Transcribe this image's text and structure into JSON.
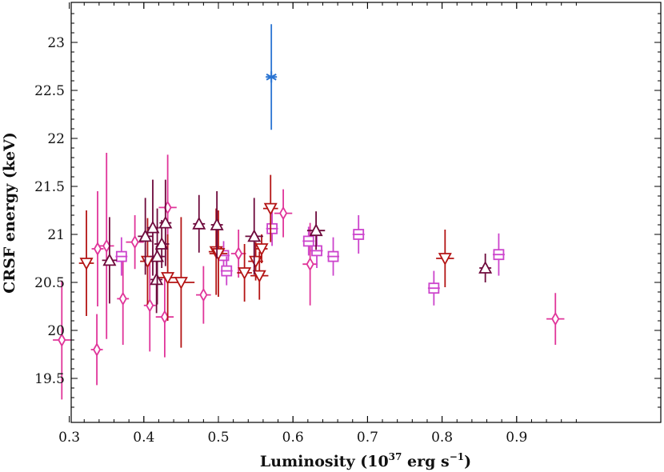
{
  "chart_data": {
    "type": "scatter",
    "title": "",
    "xlabel_main": "Luminosity (10",
    "xlabel_exp": "37",
    "xlabel_rest": " erg s",
    "xlabel_exp2": "−1",
    "xlabel_close": ")",
    "ylabel": "CRSF energy (keV)",
    "xlim": [
      0.25,
      1.0
    ],
    "ylim": [
      19.1,
      23.4
    ],
    "xticks": [
      0.3,
      0.4,
      0.5,
      0.6,
      0.7,
      0.8,
      0.9
    ],
    "xtick_labels": [
      "0.3",
      "0.4",
      "0.5",
      "0.6",
      "0.7",
      "0.8",
      "0.9"
    ],
    "yticks": [
      19.5,
      20,
      20.5,
      21,
      21.5,
      22,
      22.5,
      23
    ],
    "ytick_labels": [
      "19.5",
      "20",
      "20.5",
      "21",
      "21.5",
      "22",
      "22.5",
      "23"
    ],
    "grid": false,
    "series": [
      {
        "marker": "diamond",
        "color": "#e0359a",
        "points": [
          {
            "x": 0.29,
            "y": 19.9,
            "xerr": 0.012,
            "yerr": 0.62
          },
          {
            "x": 0.337,
            "y": 19.8,
            "xerr": 0.008,
            "yerr": 0.37
          },
          {
            "x": 0.338,
            "y": 20.85,
            "xerr": 0.008,
            "yerr": 0.6
          },
          {
            "x": 0.35,
            "y": 20.88,
            "xerr": 0.01,
            "yerr": 0.97
          },
          {
            "x": 0.372,
            "y": 20.33,
            "xerr": 0.008,
            "yerr": 0.48
          },
          {
            "x": 0.388,
            "y": 20.92,
            "xerr": 0.012,
            "yerr": 0.28
          },
          {
            "x": 0.408,
            "y": 20.26,
            "xerr": 0.008,
            "yerr": 0.48
          },
          {
            "x": 0.428,
            "y": 20.14,
            "xerr": 0.012,
            "yerr": 0.42
          },
          {
            "x": 0.432,
            "y": 21.28,
            "xerr": 0.012,
            "yerr": 0.55
          },
          {
            "x": 0.48,
            "y": 20.37,
            "xerr": 0.01,
            "yerr": 0.3
          },
          {
            "x": 0.527,
            "y": 20.8,
            "xerr": 0.01,
            "yerr": 0.25
          },
          {
            "x": 0.587,
            "y": 21.22,
            "xerr": 0.012,
            "yerr": 0.25
          },
          {
            "x": 0.623,
            "y": 20.69,
            "xerr": 0.01,
            "yerr": 0.43
          },
          {
            "x": 0.952,
            "y": 20.12,
            "xerr": 0.012,
            "yerr": 0.27
          }
        ]
      },
      {
        "marker": "square",
        "color": "#cc44cc",
        "points": [
          {
            "x": 0.37,
            "y": 20.77,
            "xerr": 0.008,
            "yerr": 0.2
          },
          {
            "x": 0.507,
            "y": 20.78,
            "xerr": 0.008,
            "yerr": 0.15
          },
          {
            "x": 0.511,
            "y": 20.62,
            "xerr": 0.008,
            "yerr": 0.15
          },
          {
            "x": 0.572,
            "y": 21.06,
            "xerr": 0.008,
            "yerr": 0.18
          },
          {
            "x": 0.621,
            "y": 20.93,
            "xerr": 0.008,
            "yerr": 0.15
          },
          {
            "x": 0.632,
            "y": 20.83,
            "xerr": 0.008,
            "yerr": 0.18
          },
          {
            "x": 0.654,
            "y": 20.77,
            "xerr": 0.008,
            "yerr": 0.2
          },
          {
            "x": 0.688,
            "y": 21.0,
            "xerr": 0.008,
            "yerr": 0.2
          },
          {
            "x": 0.789,
            "y": 20.44,
            "xerr": 0.008,
            "yerr": 0.18
          },
          {
            "x": 0.876,
            "y": 20.79,
            "xerr": 0.008,
            "yerr": 0.22
          }
        ]
      },
      {
        "marker": "triangle-down",
        "color": "#b41414",
        "points": [
          {
            "x": 0.323,
            "y": 20.7,
            "xerr": 0.01,
            "yerr": 0.55
          },
          {
            "x": 0.405,
            "y": 20.72,
            "xerr": 0.01,
            "yerr": 0.45
          },
          {
            "x": 0.432,
            "y": 20.55,
            "xerr": 0.012,
            "yerr": 0.45
          },
          {
            "x": 0.45,
            "y": 20.5,
            "xerr": 0.018,
            "yerr": 0.68
          },
          {
            "x": 0.497,
            "y": 20.82,
            "xerr": 0.01,
            "yerr": 0.45
          },
          {
            "x": 0.5,
            "y": 20.8,
            "xerr": 0.012,
            "yerr": 0.45
          },
          {
            "x": 0.535,
            "y": 20.6,
            "xerr": 0.01,
            "yerr": 0.3
          },
          {
            "x": 0.55,
            "y": 20.72,
            "xerr": 0.01,
            "yerr": 0.2
          },
          {
            "x": 0.555,
            "y": 20.57,
            "xerr": 0.012,
            "yerr": 0.25
          },
          {
            "x": 0.558,
            "y": 20.85,
            "xerr": 0.008,
            "yerr": 0.15
          },
          {
            "x": 0.57,
            "y": 21.27,
            "xerr": 0.01,
            "yerr": 0.35
          },
          {
            "x": 0.804,
            "y": 20.75,
            "xerr": 0.012,
            "yerr": 0.3
          }
        ]
      },
      {
        "marker": "triangle-up",
        "color": "#6e0a3c",
        "points": [
          {
            "x": 0.354,
            "y": 20.73,
            "xerr": 0.01,
            "yerr": 0.45
          },
          {
            "x": 0.402,
            "y": 20.98,
            "xerr": 0.01,
            "yerr": 0.4
          },
          {
            "x": 0.412,
            "y": 21.07,
            "xerr": 0.008,
            "yerr": 0.5
          },
          {
            "x": 0.417,
            "y": 20.53,
            "xerr": 0.008,
            "yerr": 0.35
          },
          {
            "x": 0.418,
            "y": 20.77,
            "xerr": 0.01,
            "yerr": 0.5
          },
          {
            "x": 0.424,
            "y": 20.9,
            "xerr": 0.01,
            "yerr": 0.25
          },
          {
            "x": 0.429,
            "y": 21.12,
            "xerr": 0.008,
            "yerr": 0.45
          },
          {
            "x": 0.474,
            "y": 21.11,
            "xerr": 0.008,
            "yerr": 0.3
          },
          {
            "x": 0.498,
            "y": 21.1,
            "xerr": 0.008,
            "yerr": 0.35
          },
          {
            "x": 0.548,
            "y": 20.98,
            "xerr": 0.012,
            "yerr": 0.4
          },
          {
            "x": 0.631,
            "y": 21.04,
            "xerr": 0.012,
            "yerr": 0.2
          },
          {
            "x": 0.858,
            "y": 20.65,
            "xerr": 0.008,
            "yerr": 0.15
          }
        ]
      },
      {
        "marker": "star",
        "color": "#2a74d2",
        "points": [
          {
            "x": 0.571,
            "y": 22.64,
            "xerr": 0.0,
            "yerr": 0.55
          }
        ]
      }
    ]
  }
}
